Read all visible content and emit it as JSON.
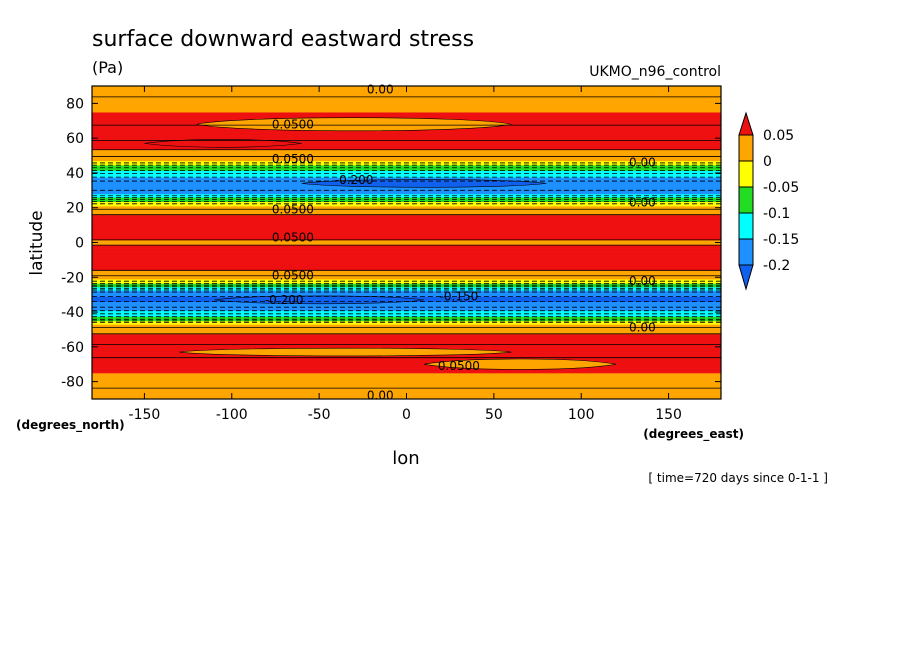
{
  "chart_data": {
    "type": "heatmap",
    "title": "surface downward eastward stress",
    "units": "(Pa)",
    "dataset": "UKMO_n96_control",
    "xlabel": "lon",
    "ylabel": "latitude",
    "x_units": "(degrees_east)",
    "y_units": "(degrees_north)",
    "time_note": "[ time=720 days since 0-1-1 ]",
    "xlim": [
      -180,
      180
    ],
    "ylim": [
      -90,
      90
    ],
    "x_ticks": [
      -150,
      -100,
      -50,
      0,
      50,
      100,
      150
    ],
    "y_ticks": [
      -80,
      -60,
      -40,
      -20,
      0,
      20,
      40,
      60,
      80
    ],
    "colorbar": {
      "levels": [
        0.05,
        0,
        -0.05,
        -0.1,
        -0.15,
        -0.2
      ],
      "labels": [
        "0.05",
        "0",
        "-0.05",
        "-0.1",
        "-0.15",
        "-0.2"
      ],
      "colors": [
        "#ee1111",
        "#ffa500",
        "#ffff00",
        "#22dd22",
        "#00ffff",
        "#1e90ff",
        "#1060ee"
      ]
    },
    "zonal_profile": {
      "lat": [
        -90,
        -85,
        -80,
        -75,
        -70,
        -65,
        -60,
        -55,
        -50,
        -47,
        -44,
        -40,
        -36,
        -32,
        -28,
        -24,
        -21,
        -18,
        -14,
        -10,
        -6,
        -3,
        0,
        3,
        6,
        10,
        14,
        18,
        21,
        24,
        28,
        32,
        36,
        40,
        44,
        47,
        50,
        55,
        60,
        65,
        70,
        75,
        80,
        85,
        90
      ],
      "stress": [
        0.0,
        0.02,
        0.04,
        0.05,
        0.06,
        0.08,
        0.08,
        0.06,
        0.04,
        0.0,
        -0.08,
        -0.14,
        -0.19,
        -0.21,
        -0.17,
        -0.06,
        0.0,
        0.04,
        0.06,
        0.07,
        0.07,
        0.06,
        0.04,
        0.06,
        0.07,
        0.07,
        0.06,
        0.04,
        0.0,
        -0.06,
        -0.15,
        -0.2,
        -0.17,
        -0.12,
        -0.06,
        0.0,
        0.03,
        0.06,
        0.08,
        0.08,
        0.07,
        0.05,
        0.04,
        0.02,
        0.0
      ]
    },
    "contour_labels": [
      "0.00",
      "0.0500",
      "0.0500",
      "0.00",
      "-0.200",
      "0.00",
      "0.0500",
      "0.0500",
      "0.0500",
      "0.00",
      "-0.150",
      "-0.200",
      "0.00",
      "0.0500",
      "0.00"
    ]
  }
}
